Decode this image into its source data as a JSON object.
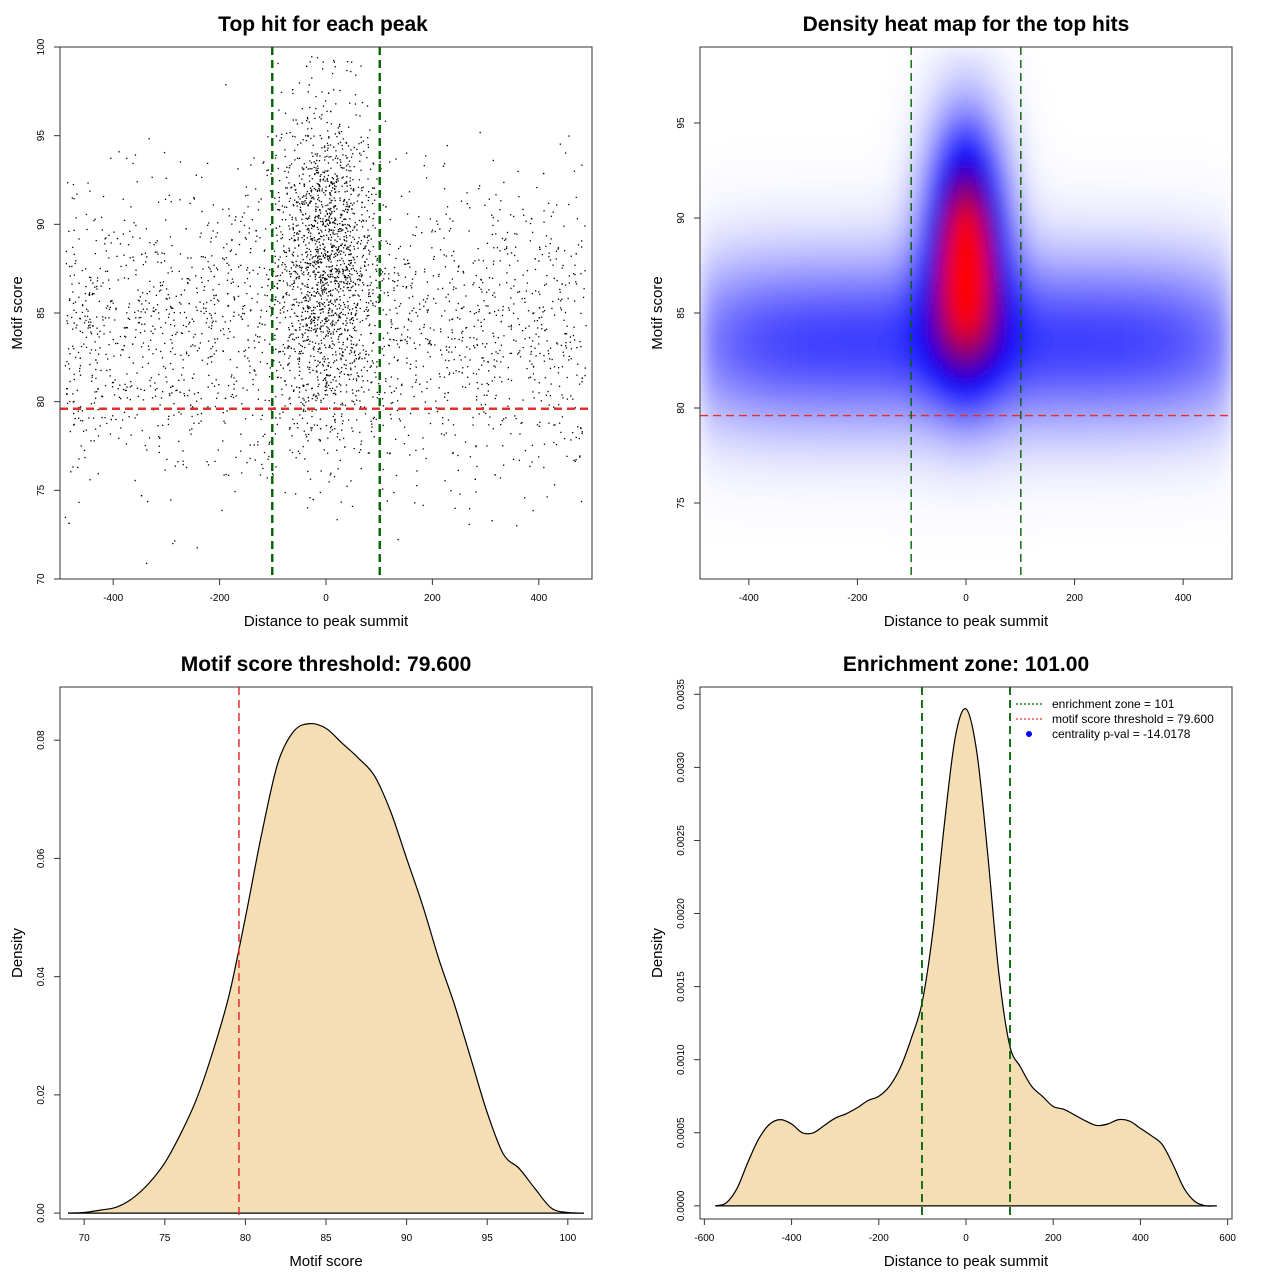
{
  "chart_data": [
    {
      "id": "scatter",
      "type": "scatter",
      "title": "Top hit for each peak",
      "xlabel": "Distance to peak summit",
      "ylabel": "Motif score",
      "xlim": [
        -500,
        500
      ],
      "ylim": [
        70,
        100
      ],
      "xticks": [
        -400,
        -200,
        0,
        200,
        400
      ],
      "yticks": [
        70,
        75,
        80,
        85,
        90,
        95,
        100
      ],
      "grid": false,
      "point_count": 3800,
      "central_cluster": {
        "x_mean": 0,
        "x_sd": 45,
        "y_mean": 88,
        "y_sd": 4.5
      },
      "background": {
        "x_range": [
          -490,
          490
        ],
        "y_mean": 84,
        "y_sd": 4.2
      },
      "hlines": [
        {
          "y": 79.6,
          "color": "#e03030",
          "style": "dashed"
        }
      ],
      "vlines": [
        {
          "x": -101,
          "color": "#006400",
          "style": "dashed"
        },
        {
          "x": 101,
          "color": "#006400",
          "style": "dashed"
        }
      ]
    },
    {
      "id": "heatmap",
      "type": "heatmap",
      "title": "Density heat map for the top hits",
      "xlabel": "Distance to peak summit",
      "ylabel": "Motif score",
      "xlim": [
        -490,
        490
      ],
      "ylim": [
        71,
        99
      ],
      "xticks": [
        -400,
        -200,
        0,
        200,
        400
      ],
      "yticks": [
        75,
        80,
        85,
        90,
        95
      ],
      "color_low": "#ffffff",
      "color_mid": "#0000ff",
      "color_high": "#ff0000",
      "density_peak": {
        "x": 0,
        "y": 88.5
      },
      "hlines": [
        {
          "y": 79.6,
          "color": "#e03030",
          "style": "dashed"
        }
      ],
      "vlines": [
        {
          "x": -101,
          "color": "#006400",
          "style": "dashed"
        },
        {
          "x": 101,
          "color": "#006400",
          "style": "dashed"
        }
      ]
    },
    {
      "id": "density_score",
      "type": "area",
      "title": "Motif score threshold: 79.600",
      "xlabel": "Motif score",
      "ylabel": "Density",
      "xlim": [
        68.5,
        101.5
      ],
      "ylim": [
        -0.001,
        0.089
      ],
      "xticks": [
        70,
        75,
        80,
        85,
        90,
        95,
        100
      ],
      "yticks": [
        0.0,
        0.02,
        0.04,
        0.06,
        0.08
      ],
      "ytick_labels": [
        "0.00",
        "0.02",
        "0.04",
        "0.06",
        "0.08"
      ],
      "fill_color": "#f5deb3",
      "x": [
        69,
        70,
        71,
        72,
        73,
        74,
        75,
        76,
        77,
        78,
        79,
        80,
        81,
        82,
        83,
        84,
        85,
        86,
        87,
        88,
        89,
        90,
        91,
        92,
        93,
        94,
        95,
        96,
        97,
        98,
        99,
        100,
        101
      ],
      "y": [
        0.0,
        0.0001,
        0.0005,
        0.001,
        0.0025,
        0.005,
        0.0085,
        0.0135,
        0.0195,
        0.0275,
        0.037,
        0.05,
        0.064,
        0.076,
        0.0815,
        0.0828,
        0.082,
        0.0795,
        0.077,
        0.074,
        0.068,
        0.06,
        0.052,
        0.043,
        0.035,
        0.026,
        0.017,
        0.01,
        0.0075,
        0.004,
        0.0008,
        0.0001,
        0.0
      ],
      "vlines": [
        {
          "x": 79.6,
          "color": "#e03030",
          "style": "dashed"
        }
      ]
    },
    {
      "id": "density_distance",
      "type": "area",
      "title": "Enrichment zone: 101.00",
      "xlabel": "Distance to peak summit",
      "ylabel": "Density",
      "xlim": [
        -610,
        610
      ],
      "ylim": [
        -9e-05,
        0.00355
      ],
      "xticks": [
        -600,
        -400,
        -200,
        0,
        200,
        400,
        600
      ],
      "yticks": [
        0.0,
        0.0005,
        0.001,
        0.0015,
        0.002,
        0.0025,
        0.003,
        0.0035
      ],
      "ytick_labels": [
        "0.0000",
        "0.0005",
        "0.0010",
        "0.0015",
        "0.0020",
        "0.0025",
        "0.0030",
        "0.0035"
      ],
      "fill_color": "#f5deb3",
      "x": [
        -575,
        -550,
        -525,
        -500,
        -475,
        -450,
        -425,
        -400,
        -375,
        -350,
        -325,
        -300,
        -275,
        -250,
        -225,
        -200,
        -175,
        -150,
        -125,
        -100,
        -75,
        -50,
        -25,
        0,
        25,
        50,
        75,
        100,
        125,
        150,
        175,
        200,
        225,
        250,
        275,
        300,
        325,
        350,
        375,
        400,
        425,
        450,
        475,
        500,
        525,
        550,
        575
      ],
      "y": [
        0.0,
        2e-05,
        0.00012,
        0.0003,
        0.00046,
        0.00056,
        0.00059,
        0.00056,
        0.0005,
        0.0005,
        0.00055,
        0.0006,
        0.00063,
        0.00067,
        0.00072,
        0.00075,
        0.00082,
        0.00095,
        0.00115,
        0.0014,
        0.0019,
        0.0026,
        0.0032,
        0.0034,
        0.0031,
        0.0024,
        0.0016,
        0.0011,
        0.00095,
        0.00082,
        0.00075,
        0.00068,
        0.00066,
        0.00062,
        0.00058,
        0.00055,
        0.00056,
        0.00059,
        0.00058,
        0.00053,
        0.00048,
        0.00042,
        0.00028,
        0.00012,
        3e-05,
        0.0,
        0.0
      ],
      "vlines": [
        {
          "x": -101,
          "color": "#006400",
          "style": "dashed"
        },
        {
          "x": 101,
          "color": "#006400",
          "style": "dashed"
        }
      ],
      "legend": {
        "placement": "top-right",
        "entries": [
          {
            "label": "enrichment zone = 101",
            "color": "#006400",
            "style": "dotted-line"
          },
          {
            "label": "motif score threshold = 79.600",
            "color": "#e03030",
            "style": "dotted-line"
          },
          {
            "label": "centrality p-val = -14.0178",
            "color": "#0000ff",
            "style": "point"
          }
        ]
      }
    }
  ]
}
